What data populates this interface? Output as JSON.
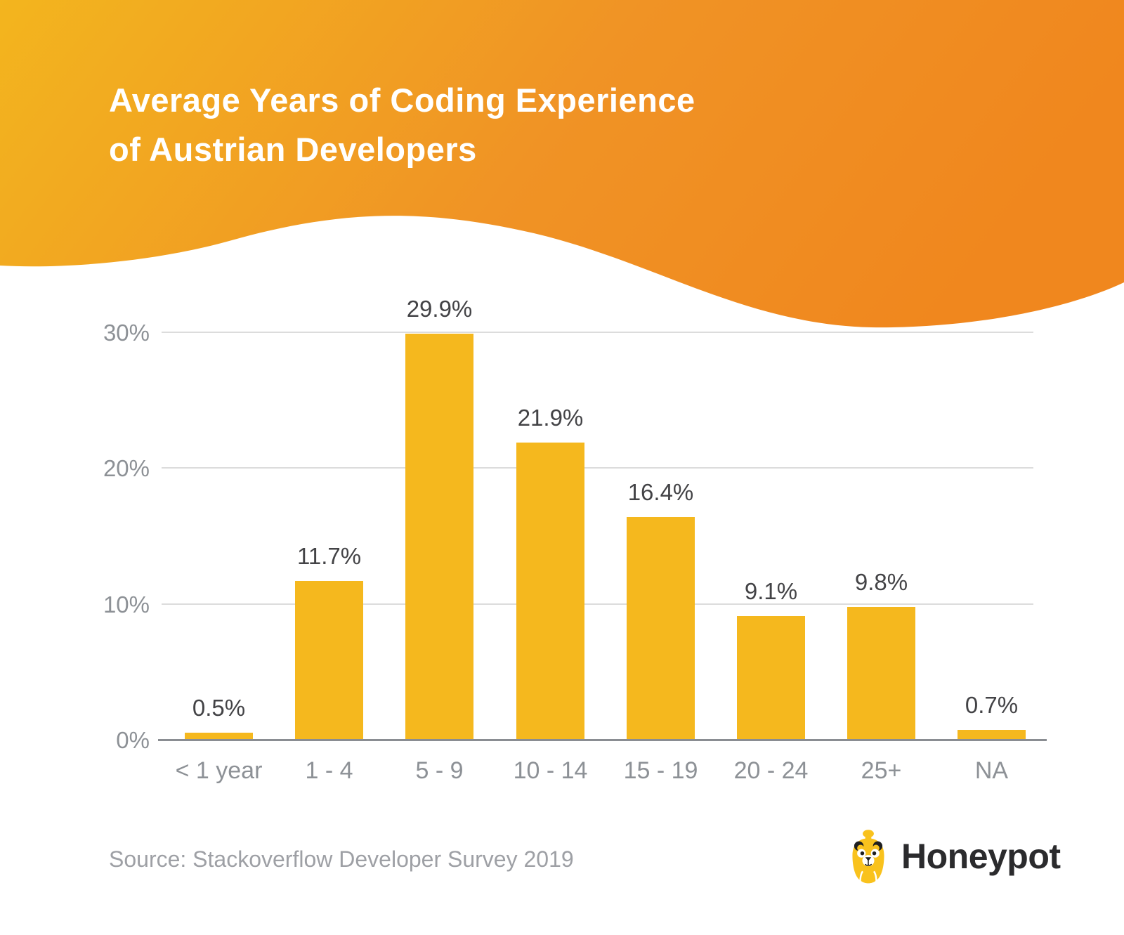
{
  "header": {
    "title_line1": "Average Years of Coding Experience",
    "title_line2": "of Austrian Developers",
    "gradient_left": "#F3B51E",
    "gradient_mid": "#F09325",
    "gradient_right": "#F0871E"
  },
  "chart_data": {
    "type": "bar",
    "title": "Average Years of Coding Experience of Austrian Developers",
    "categories": [
      "< 1 year",
      "1 - 4",
      "5 - 9",
      "10 - 14",
      "15 - 19",
      "20 - 24",
      "25+",
      "NA"
    ],
    "values": [
      0.5,
      11.7,
      29.9,
      21.9,
      16.4,
      9.1,
      9.8,
      0.7
    ],
    "value_labels": [
      "0.5%",
      "11.7%",
      "29.9%",
      "21.9%",
      "16.4%",
      "9.1%",
      "9.8%",
      "0.7%"
    ],
    "xlabel": "",
    "ylabel": "",
    "ylim": [
      0,
      30
    ],
    "yticks": [
      0,
      10,
      20,
      30
    ],
    "ytick_labels": [
      "0%",
      "10%",
      "20%",
      "30%"
    ],
    "grid": true,
    "legend": false,
    "bar_color": "#f5b81e"
  },
  "footer": {
    "source": "Source: Stackoverflow Developer Survey 2019",
    "logo_text": "Honeypot"
  },
  "colors": {
    "bar": "#f5b81e",
    "gridline": "#dcdcdc",
    "axis_line": "#8a8d92",
    "tick_text": "#8d9196",
    "value_text": "#434346",
    "source_text": "#9ea0a5",
    "logo_text": "#2b2b2d",
    "logo_yellow": "#f9c21d",
    "logo_dark": "#1f1f1f",
    "title_text": "#ffffff"
  }
}
